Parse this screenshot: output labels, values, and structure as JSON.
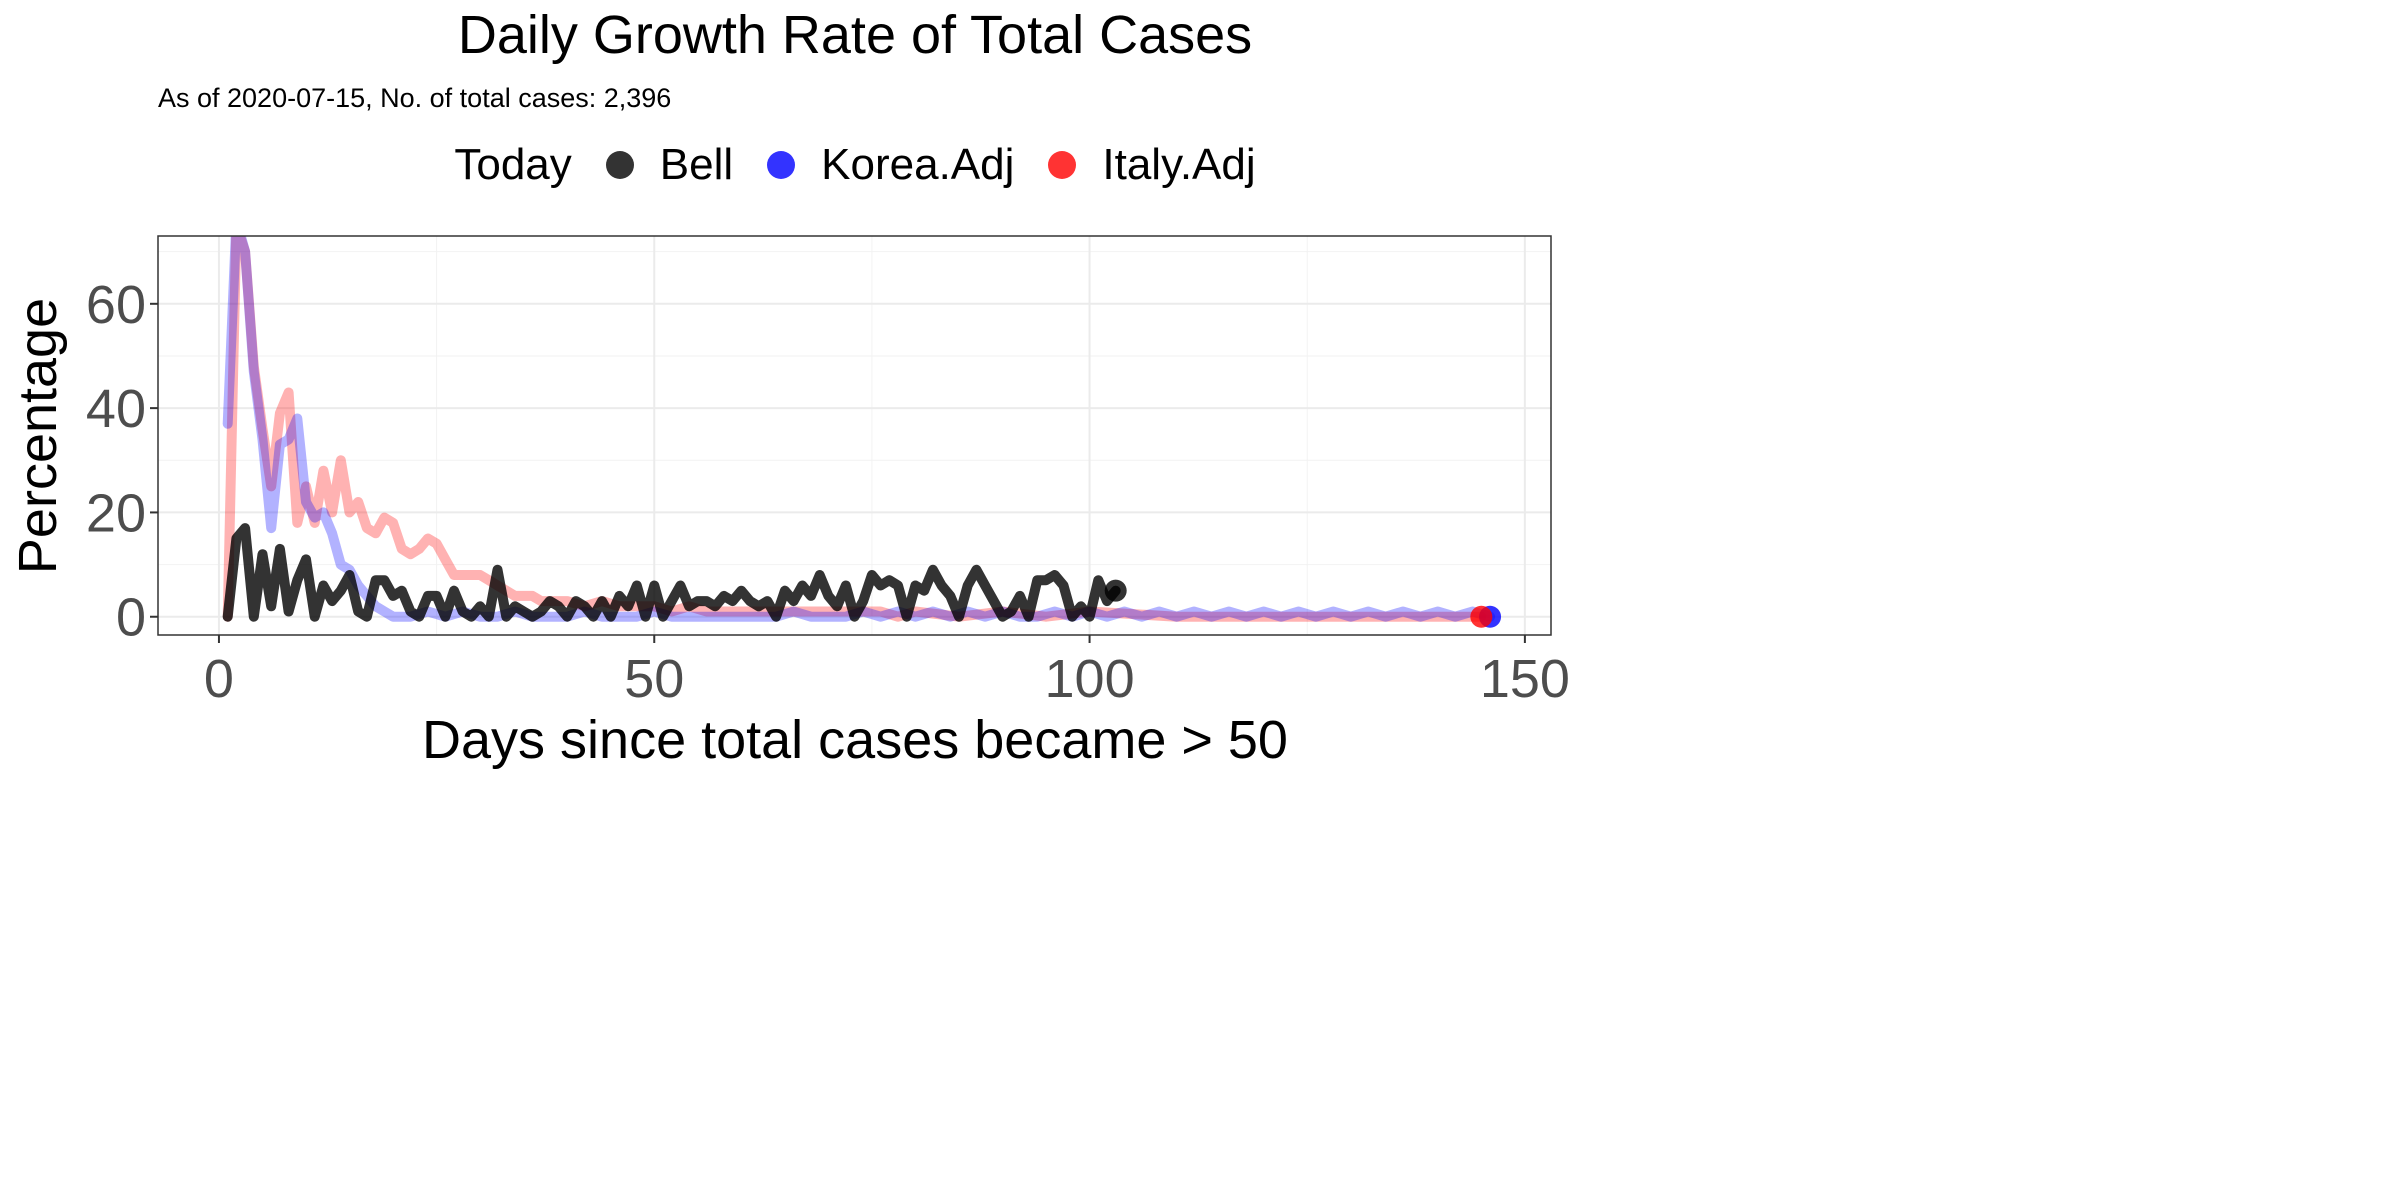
{
  "chart_data": {
    "type": "line",
    "title": "Daily Growth Rate of Total Cases",
    "subtitle": "As of 2020-07-15, No. of total cases: 2,396",
    "xlabel": "Days since total cases became > 50",
    "ylabel": "Percentage",
    "xlim": [
      -7,
      153
    ],
    "ylim": [
      -3.5,
      73
    ],
    "x_ticks": [
      0,
      50,
      100,
      150
    ],
    "y_ticks": [
      0,
      20,
      40,
      60
    ],
    "grid": true,
    "legend_title": "Today",
    "legend_position": "top",
    "series": [
      {
        "name": "Bell",
        "color": "#000000",
        "x": [
          1,
          2,
          3,
          4,
          5,
          6,
          7,
          8,
          9,
          10,
          11,
          12,
          13,
          14,
          15,
          16,
          17,
          18,
          19,
          20,
          21,
          22,
          23,
          24,
          25,
          26,
          27,
          28,
          29,
          30,
          31,
          32,
          33,
          34,
          35,
          36,
          37,
          38,
          39,
          40,
          41,
          42,
          43,
          44,
          45,
          46,
          47,
          48,
          49,
          50,
          51,
          52,
          53,
          54,
          55,
          56,
          57,
          58,
          59,
          60,
          61,
          62,
          63,
          64,
          65,
          66,
          67,
          68,
          69,
          70,
          71,
          72,
          73,
          74,
          75,
          76,
          77,
          78,
          79,
          80,
          81,
          82,
          83,
          84,
          85,
          86,
          87,
          88,
          89,
          90,
          91,
          92,
          93,
          94,
          95,
          96,
          97,
          98,
          99,
          100,
          101,
          102,
          103
        ],
        "y": [
          0,
          15,
          17,
          0,
          12,
          2,
          13,
          1,
          7,
          11,
          0,
          6,
          3,
          5,
          8,
          1,
          0,
          7,
          7,
          4,
          5,
          1,
          0,
          4,
          4,
          0,
          5,
          1,
          0,
          2,
          0,
          9,
          0,
          2,
          1,
          0,
          1,
          3,
          2,
          0,
          3,
          2,
          0,
          3,
          0,
          4,
          2,
          6,
          0,
          6,
          0,
          3,
          6,
          2,
          3,
          3,
          2,
          4,
          3,
          5,
          3,
          2,
          3,
          0,
          5,
          3,
          6,
          4,
          8,
          4,
          2,
          6,
          0,
          3,
          8,
          6,
          7,
          6,
          0,
          6,
          5,
          9,
          6,
          4,
          0,
          6,
          9,
          6,
          3,
          0,
          1,
          4,
          0,
          7,
          7,
          8,
          6,
          0,
          2,
          0,
          7,
          3,
          5
        ],
        "today": [
          103,
          5
        ]
      },
      {
        "name": "Korea.Adj",
        "color": "#0000ff",
        "x": [
          1,
          2,
          3,
          4,
          5,
          6,
          7,
          8,
          9,
          10,
          11,
          12,
          13,
          14,
          15,
          16,
          17,
          18,
          19,
          20,
          22,
          24,
          26,
          28,
          30,
          32,
          34,
          36,
          38,
          40,
          42,
          44,
          46,
          48,
          50,
          52,
          54,
          56,
          58,
          60,
          62,
          64,
          66,
          68,
          70,
          72,
          74,
          76,
          78,
          80,
          82,
          84,
          86,
          88,
          90,
          92,
          94,
          96,
          98,
          100,
          102,
          104,
          106,
          108,
          110,
          112,
          114,
          116,
          118,
          120,
          122,
          124,
          126,
          128,
          130,
          132,
          134,
          136,
          138,
          140,
          142,
          144,
          146
        ],
        "y": [
          37,
          100,
          70,
          47,
          34,
          17,
          33,
          34,
          38,
          22,
          19,
          20,
          16,
          10,
          9,
          6,
          4,
          2,
          1,
          0,
          0,
          1,
          0,
          1,
          0,
          0,
          1,
          0,
          0,
          0,
          1,
          0,
          0,
          0,
          1,
          0,
          0,
          0,
          0,
          0,
          0,
          0,
          1,
          0,
          0,
          0,
          1,
          0,
          1,
          0,
          1,
          0,
          1,
          0,
          1,
          0,
          0,
          1,
          0,
          1,
          0,
          1,
          0,
          1,
          0,
          1,
          0,
          1,
          0,
          1,
          0,
          1,
          0,
          1,
          0,
          1,
          0,
          1,
          0,
          1,
          0,
          1,
          0
        ],
        "today": [
          146,
          0
        ]
      },
      {
        "name": "Italy.Adj",
        "color": "#ff0000",
        "x": [
          1,
          2,
          3,
          4,
          5,
          6,
          7,
          8,
          9,
          10,
          11,
          12,
          13,
          14,
          15,
          16,
          17,
          18,
          19,
          20,
          21,
          22,
          23,
          24,
          25,
          26,
          27,
          28,
          29,
          30,
          31,
          32,
          33,
          34,
          35,
          36,
          37,
          38,
          40,
          42,
          44,
          46,
          48,
          50,
          52,
          54,
          56,
          58,
          60,
          62,
          64,
          66,
          68,
          70,
          72,
          74,
          76,
          78,
          80,
          85,
          90,
          95,
          100,
          110,
          120,
          130,
          140,
          145
        ],
        "y": [
          0,
          75,
          70,
          48,
          36,
          25,
          39,
          43,
          18,
          25,
          18,
          28,
          20,
          30,
          20,
          22,
          17,
          16,
          19,
          18,
          13,
          12,
          13,
          15,
          14,
          11,
          8,
          8,
          8,
          8,
          7,
          6,
          5,
          4,
          4,
          4,
          3,
          3,
          3,
          2,
          3,
          2,
          2,
          2,
          1,
          2,
          1,
          1,
          1,
          1,
          1,
          1,
          1,
          1,
          1,
          1,
          1,
          0,
          1,
          0,
          1,
          0,
          1,
          0,
          0,
          0,
          0,
          0
        ],
        "today": [
          145,
          0
        ]
      }
    ]
  }
}
